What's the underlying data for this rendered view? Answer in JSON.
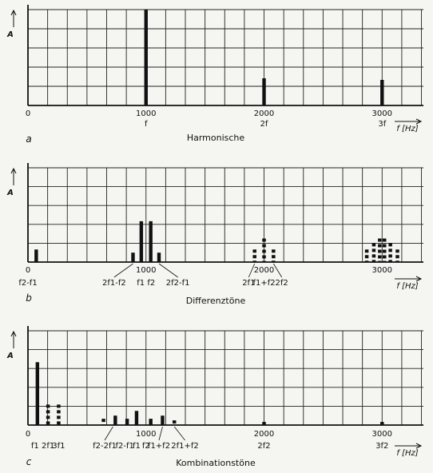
{
  "chart_data": [
    {
      "panel": "a",
      "type": "bar",
      "title": "Harmonische",
      "ylabel": "A",
      "xlabel": "f [Hz]",
      "xlim": [
        0,
        3350
      ],
      "ylim": [
        0,
        6
      ],
      "xticks": [
        "0",
        "1000",
        "2000",
        "3000"
      ],
      "sublabels": [
        {
          "x": 1000,
          "text": "f"
        },
        {
          "x": 2000,
          "text": "2f"
        },
        {
          "x": 3000,
          "text": "3f"
        }
      ],
      "bars": [
        {
          "x": 1000,
          "y": 6.0,
          "style": "solid"
        },
        {
          "x": 2000,
          "y": 1.7,
          "style": "solid"
        },
        {
          "x": 3000,
          "y": 1.6,
          "style": "solid"
        }
      ]
    },
    {
      "panel": "b",
      "type": "bar",
      "title": "Differenztöne",
      "ylabel": "A",
      "xlabel": "f [Hz]",
      "xlim": [
        0,
        3350
      ],
      "ylim": [
        0,
        6
      ],
      "xticks": [
        "0",
        "1000",
        "2000",
        "3000"
      ],
      "sublabels": [
        {
          "x": 0,
          "text": "f2-f1",
          "lx": 0
        },
        {
          "x": 890,
          "text": "2f1-f2",
          "lx": 730
        },
        {
          "x": 1000,
          "text": "f1 f2",
          "lx": 1000
        },
        {
          "x": 1110,
          "text": "2f2-f1",
          "lx": 1270
        },
        {
          "x": 1920,
          "text": "2f1",
          "lx": 1870
        },
        {
          "x": 2000,
          "text": "f1+f2",
          "lx": 2000
        },
        {
          "x": 2080,
          "text": "2f2",
          "lx": 2150
        }
      ],
      "bars": [
        {
          "x": 70,
          "y": 0.8,
          "style": "solid"
        },
        {
          "x": 890,
          "y": 0.6,
          "style": "solid"
        },
        {
          "x": 960,
          "y": 2.6,
          "style": "solid"
        },
        {
          "x": 1040,
          "y": 2.6,
          "style": "solid"
        },
        {
          "x": 1110,
          "y": 0.6,
          "style": "solid"
        },
        {
          "x": 1920,
          "y": 0.8,
          "style": "dashed"
        },
        {
          "x": 2000,
          "y": 1.5,
          "style": "dashed"
        },
        {
          "x": 2080,
          "y": 0.8,
          "style": "dashed"
        },
        {
          "x": 2870,
          "y": 0.8,
          "style": "dashed"
        },
        {
          "x": 2930,
          "y": 1.2,
          "style": "dashed"
        },
        {
          "x": 2980,
          "y": 1.5,
          "style": "dashed"
        },
        {
          "x": 3020,
          "y": 1.5,
          "style": "dashed"
        },
        {
          "x": 3070,
          "y": 1.2,
          "style": "dashed"
        },
        {
          "x": 3130,
          "y": 0.8,
          "style": "dashed"
        }
      ]
    },
    {
      "panel": "c",
      "type": "bar",
      "title": "Kombinationstöne",
      "ylabel": "A",
      "xlabel": "f [Hz]",
      "xlim": [
        0,
        3350
      ],
      "ylim": [
        0,
        6
      ],
      "xticks": [
        "0",
        "1000",
        "2000",
        "3000"
      ],
      "sublabels": [
        {
          "x": 80,
          "text": "f1",
          "lx": 60
        },
        {
          "x": 160,
          "text": "2f1",
          "lx": 170
        },
        {
          "x": 250,
          "text": "3f1",
          "lx": 260
        },
        {
          "x": 720,
          "text": "f2-2f1",
          "lx": 650
        },
        {
          "x": 800,
          "text": "f2-f1",
          "lx": 820
        },
        {
          "x": 920,
          "text": "f1",
          "lx": 920
        },
        {
          "x": 1000,
          "text": "f2",
          "lx": 1000
        },
        {
          "x": 1140,
          "text": "f1+f2",
          "lx": 1110
        },
        {
          "x": 1240,
          "text": "2f1+f2",
          "lx": 1330
        },
        {
          "x": 2000,
          "text": "2f2",
          "lx": 2000
        },
        {
          "x": 3000,
          "text": "3f2",
          "lx": 3000
        }
      ],
      "bars": [
        {
          "x": 80,
          "y": 4.0,
          "style": "solid"
        },
        {
          "x": 170,
          "y": 1.3,
          "style": "dashed"
        },
        {
          "x": 260,
          "y": 1.3,
          "style": "dashed"
        },
        {
          "x": 640,
          "y": 0.4,
          "style": "dashed"
        },
        {
          "x": 740,
          "y": 0.6,
          "style": "solid"
        },
        {
          "x": 840,
          "y": 0.4,
          "style": "solid"
        },
        {
          "x": 920,
          "y": 0.9,
          "style": "solid"
        },
        {
          "x": 1040,
          "y": 0.4,
          "style": "solid"
        },
        {
          "x": 1140,
          "y": 0.6,
          "style": "solid"
        },
        {
          "x": 1240,
          "y": 0.3,
          "style": "dashed"
        },
        {
          "x": 2000,
          "y": 0.2,
          "style": "dashed"
        },
        {
          "x": 3000,
          "y": 0.2,
          "style": "dashed"
        }
      ]
    }
  ]
}
